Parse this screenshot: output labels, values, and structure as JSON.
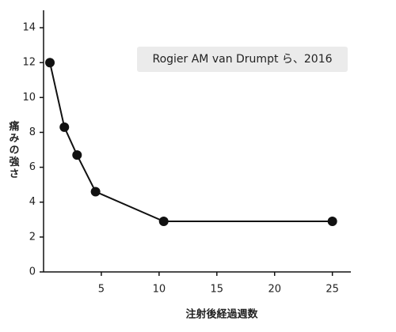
{
  "chart_data": {
    "type": "line",
    "annotation": "Rogier AM van Drumpt ら、2016",
    "x_label": "注射後経過週数",
    "y_label": "痛みの強さ",
    "x": [
      0.55,
      1.8,
      2.9,
      4.5,
      10.4,
      25
    ],
    "series": [
      {
        "color": "#111111",
        "values": [
          12,
          8.3,
          6.7,
          4.6,
          2.9,
          2.9
        ]
      }
    ],
    "xlim": [
      0,
      26.6
    ],
    "ylim": [
      0,
      15
    ],
    "xticks": [
      5,
      10,
      15,
      20,
      25
    ],
    "yticks": [
      0,
      2,
      4,
      6,
      8,
      10,
      12,
      14
    ]
  }
}
